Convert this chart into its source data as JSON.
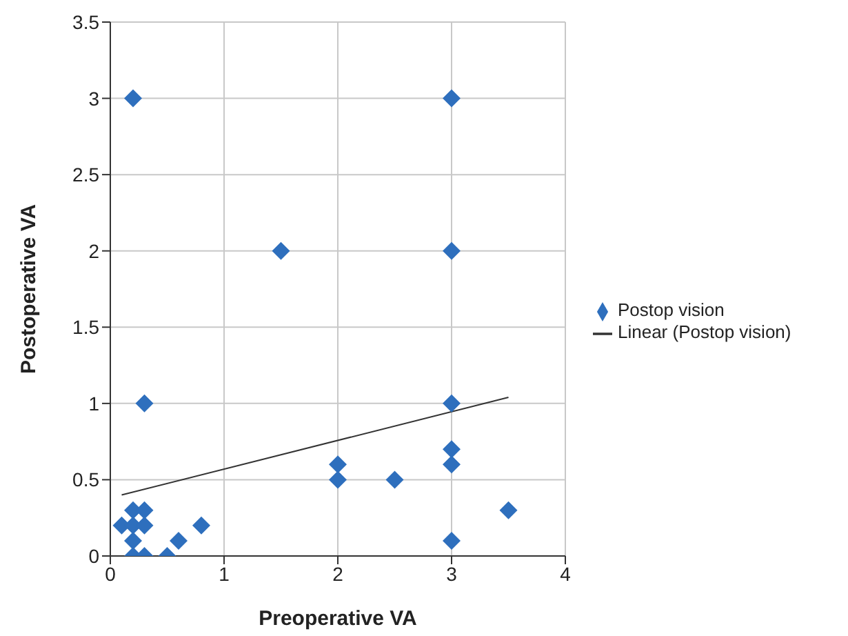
{
  "chart_data": {
    "type": "scatter",
    "xlabel": "Preoperative VA",
    "ylabel": "Postoperative VA",
    "series": [
      {
        "name": "Postop vision",
        "type": "scatter",
        "color": "#2e6fbd",
        "marker": "diamond",
        "x": [
          0.2,
          3,
          1.5,
          3,
          3,
          0.3,
          2,
          2,
          2.5,
          3,
          3,
          3,
          3.5,
          0.1,
          0.2,
          0.3,
          0.2,
          0.3,
          0.2,
          0.2,
          0.3,
          0.5,
          0.6,
          0.8
        ],
        "values": [
          3,
          3,
          2,
          2,
          1,
          1,
          0.6,
          0.5,
          0.5,
          0.7,
          0.6,
          0.1,
          0.3,
          0.2,
          0.3,
          0.3,
          0.2,
          0.2,
          0.1,
          0,
          0,
          0,
          0.1,
          0.2
        ]
      },
      {
        "name": "Linear (Postop vision)",
        "type": "line",
        "color": "#333333",
        "marker": "none",
        "line_style": "solid",
        "x": [
          0.1,
          3.5
        ],
        "values": [
          0.4,
          1.04
        ]
      }
    ],
    "xlim": [
      0,
      4
    ],
    "xticks": [
      0,
      1,
      2,
      3,
      4
    ],
    "ylim": [
      0,
      3.5
    ],
    "yticks": [
      0,
      0.5,
      1,
      1.5,
      2,
      2.5,
      3,
      3.5
    ],
    "grid": true,
    "legend": "right"
  }
}
